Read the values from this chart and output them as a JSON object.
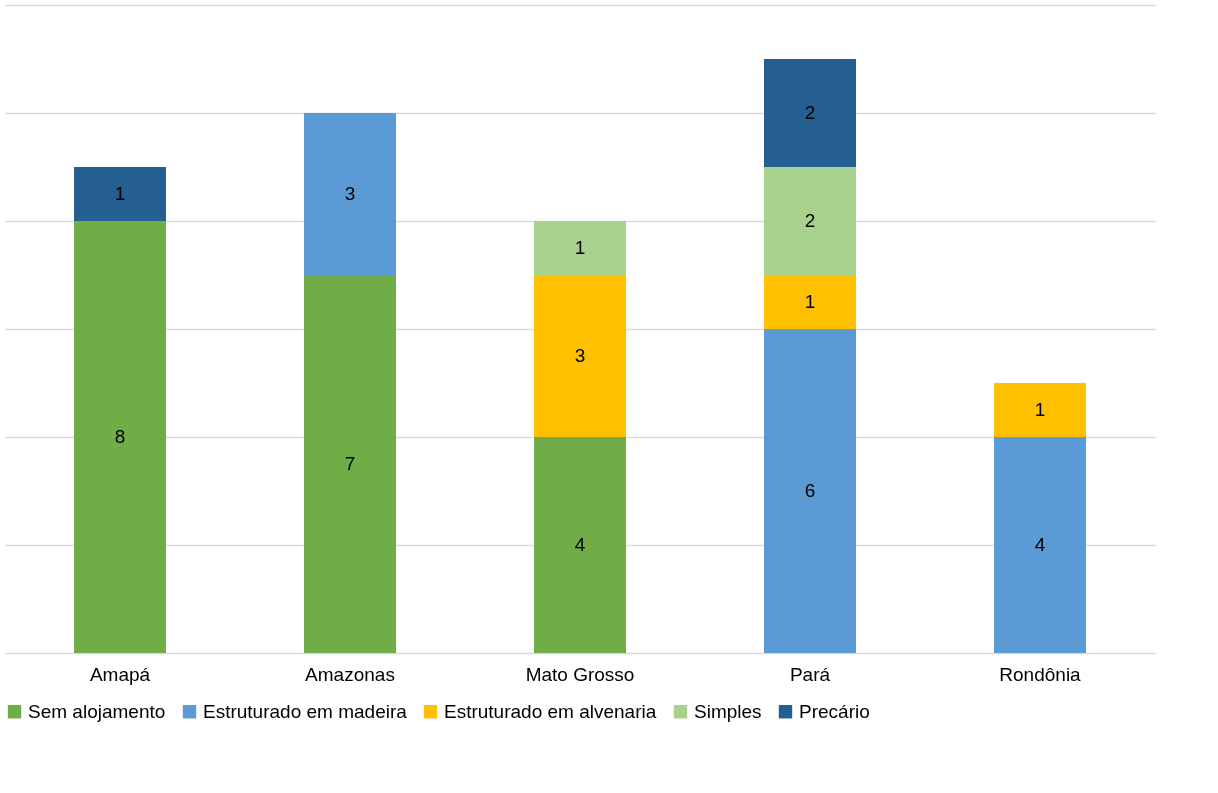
{
  "chart_data": {
    "type": "bar",
    "stacked": true,
    "categories": [
      "Amapá",
      "Amazonas",
      "Mato Grosso",
      "Pará",
      "Rondônia"
    ],
    "series": [
      {
        "name": "Sem alojamento",
        "color": "#70ad47",
        "values": [
          8,
          7,
          4,
          null,
          null
        ]
      },
      {
        "name": "Estruturado em madeira",
        "color": "#5b9bd5",
        "values": [
          null,
          3,
          null,
          6,
          4
        ]
      },
      {
        "name": "Estruturado em alvenaria",
        "color": "#ffc000",
        "values": [
          null,
          null,
          3,
          1,
          1
        ]
      },
      {
        "name": "Simples",
        "color": "#a9d18e",
        "values": [
          null,
          null,
          1,
          2,
          null
        ]
      },
      {
        "name": "Precário",
        "color": "#255e91",
        "values": [
          1,
          null,
          null,
          2,
          null
        ]
      }
    ],
    "ylim": [
      0,
      12
    ],
    "yticks": [
      0,
      2,
      4,
      6,
      8,
      10,
      12
    ],
    "grid": "y",
    "tick_labels": "x",
    "legend": "bottom",
    "data_labels": true
  }
}
